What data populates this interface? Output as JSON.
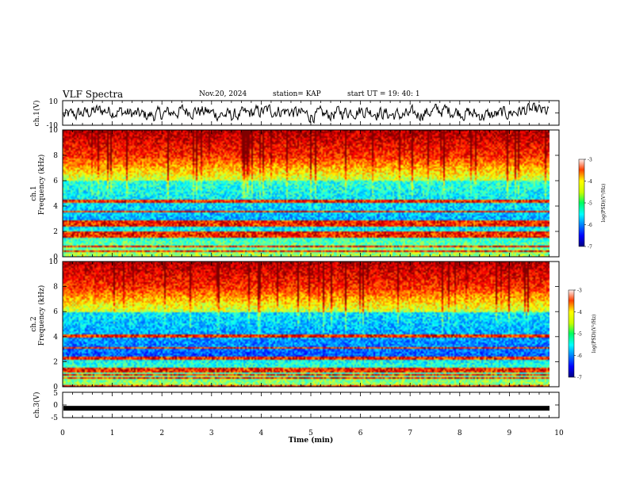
{
  "header": {
    "title": "VLF Spectra",
    "date": "Nov.20, 2024",
    "station": "station= KAP",
    "start": "start  UT  =   19: 40: 1"
  },
  "chart_data": [
    {
      "id": "ch1-waveform",
      "type": "line",
      "ylabel": "ch.1(V)",
      "ylim": [
        -10,
        10
      ],
      "yticks": [
        "10",
        "-10"
      ],
      "xlim": [
        0,
        10
      ],
      "series": [
        {
          "color": "#000000"
        }
      ]
    },
    {
      "id": "ch1-spectrogram",
      "type": "heatmap",
      "ylabel_line1": "ch.1",
      "ylabel_line2": "Frequency  (kHz)",
      "ylim": [
        0,
        10
      ],
      "yticks": [
        "0",
        "2",
        "4",
        "6",
        "8",
        "10"
      ],
      "xlim": [
        0,
        10
      ],
      "data_end_min": 9.8,
      "colorbar": {
        "label": "log(PSD)(V²/Hz)",
        "range": [
          -7,
          -3
        ],
        "ticks": [
          "-3",
          "-4",
          "-5",
          "-6",
          "-7"
        ]
      }
    },
    {
      "id": "ch2-spectrogram",
      "type": "heatmap",
      "ylabel_line1": "ch.2",
      "ylabel_line2": "Frequency  (kHz)",
      "ylim": [
        0,
        10
      ],
      "yticks": [
        "0",
        "2",
        "4",
        "6",
        "8",
        "10"
      ],
      "xlim": [
        0,
        10
      ],
      "data_end_min": 9.8,
      "colorbar": {
        "label": "log(PSD)(V²/Hz)",
        "range": [
          -7,
          -3
        ],
        "ticks": [
          "-3",
          "-4",
          "-5",
          "-6",
          "-7"
        ]
      }
    },
    {
      "id": "ch3-waveform",
      "type": "line",
      "ylabel": "ch.3(V)",
      "ylim": [
        -5,
        5
      ],
      "yticks": [
        "5",
        "0",
        "-5"
      ],
      "xlim": [
        0,
        10
      ],
      "xlabel": "Time  (min)",
      "xticks": [
        "0",
        "1",
        "2",
        "3",
        "4",
        "5",
        "6",
        "7",
        "8",
        "9",
        "10"
      ],
      "series": [
        {
          "color": "#000000",
          "level_v": -1.3
        }
      ]
    }
  ]
}
